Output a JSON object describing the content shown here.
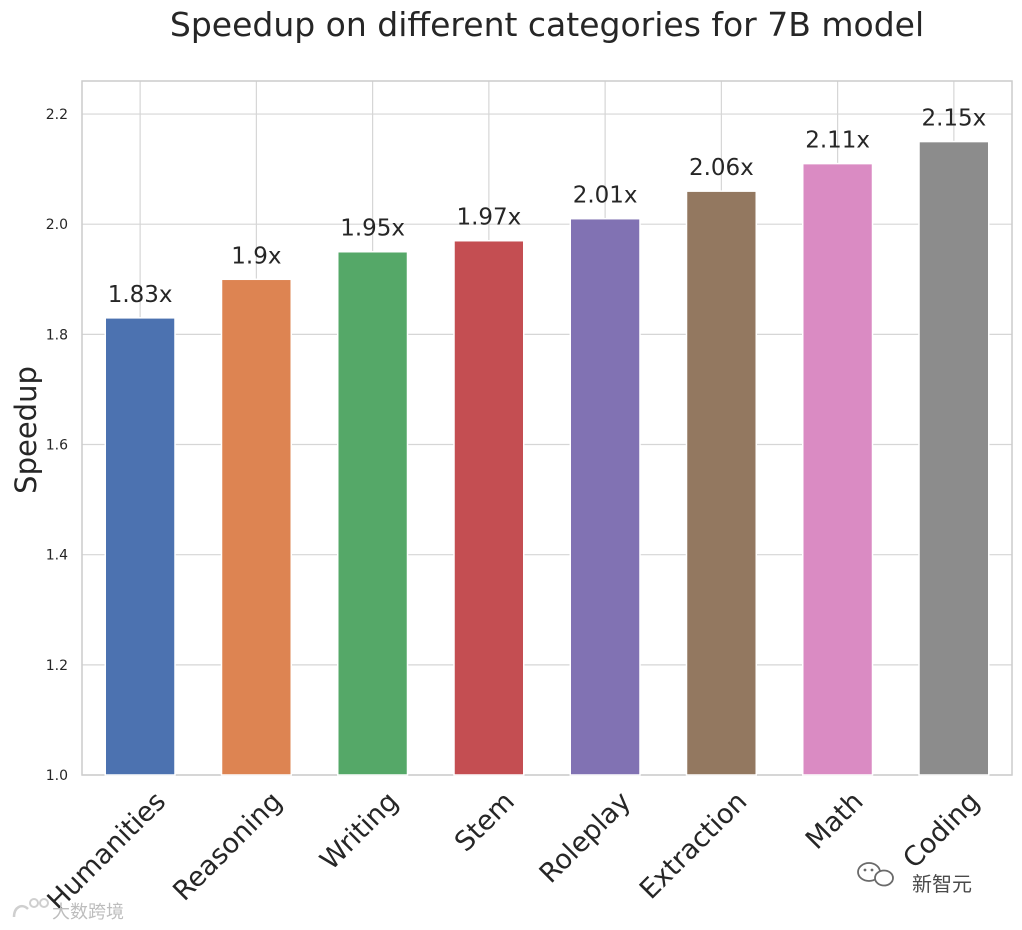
{
  "chart_data": {
    "type": "bar",
    "title": "Speedup on different categories for 7B model",
    "xlabel": "",
    "ylabel": "Speedup",
    "ylim": [
      1.0,
      2.26
    ],
    "yticks": [
      "1.0",
      "1.2",
      "1.4",
      "1.6",
      "1.8",
      "2.0",
      "2.2"
    ],
    "ytick_values": [
      1.0,
      1.2,
      1.4,
      1.6,
      1.8,
      2.0,
      2.2
    ],
    "grid": true,
    "categories": [
      "Humanities",
      "Reasoning",
      "Writing",
      "Stem",
      "Roleplay",
      "Extraction",
      "Math",
      "Coding"
    ],
    "values": [
      1.83,
      1.9,
      1.95,
      1.97,
      2.01,
      2.06,
      2.11,
      2.15
    ],
    "bar_labels": [
      "1.83x",
      "1.9x",
      "1.95x",
      "1.97x",
      "2.01x",
      "2.06x",
      "2.11x",
      "2.15x"
    ],
    "bar_colors": [
      "#4c72b0",
      "#dd8452",
      "#55a868",
      "#c44e52",
      "#8172b3",
      "#937860",
      "#da8bc3",
      "#8c8c8c"
    ]
  },
  "watermarks": {
    "left": "大数跨境",
    "right": "新智元"
  }
}
